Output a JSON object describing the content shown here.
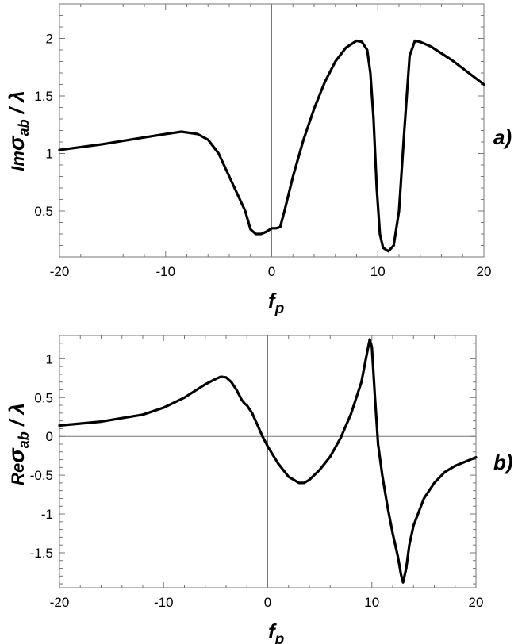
{
  "chart_data": [
    {
      "type": "line",
      "panel_label": "a)",
      "xlabel": {
        "base": "f",
        "sub": "p"
      },
      "ylabel": {
        "prefix": "Im",
        "sigma": "σ",
        "sub": "ab",
        "suffix": " / λ"
      },
      "xlim": [
        -20,
        20
      ],
      "ylim": [
        0.1,
        2.3
      ],
      "xticks": [
        -20,
        -10,
        0,
        10,
        20
      ],
      "yticks": [
        0.5,
        1,
        1.5,
        2
      ],
      "ytick_labels": [
        "0.5",
        "1",
        "1.5",
        "2"
      ],
      "xtick_labels": [
        "-20",
        "-10",
        "0",
        "10",
        "20"
      ],
      "zero_line_x": true,
      "zero_line_y": false,
      "series": [
        {
          "color": "#000000",
          "x": [
            -20,
            -16,
            -12,
            -10,
            -8.5,
            -7,
            -6,
            -5,
            -4,
            -3,
            -2.5,
            -2,
            -1.5,
            -1,
            -0.5,
            0,
            0.4,
            0.8,
            1.2,
            2,
            3,
            4,
            5,
            6,
            7,
            8,
            8.5,
            9,
            9.3,
            9.6,
            9.9,
            10.2,
            10.5,
            11,
            11.5,
            12,
            12.5,
            13,
            13.5,
            14,
            15,
            17,
            20
          ],
          "y": [
            1.03,
            1.08,
            1.14,
            1.17,
            1.19,
            1.17,
            1.12,
            1.0,
            0.8,
            0.6,
            0.5,
            0.34,
            0.3,
            0.3,
            0.32,
            0.35,
            0.35,
            0.36,
            0.5,
            0.8,
            1.12,
            1.39,
            1.62,
            1.8,
            1.92,
            1.98,
            1.97,
            1.9,
            1.7,
            1.3,
            0.7,
            0.3,
            0.18,
            0.15,
            0.2,
            0.5,
            1.2,
            1.85,
            1.98,
            1.97,
            1.93,
            1.81,
            1.6
          ]
        }
      ]
    },
    {
      "type": "line",
      "panel_label": "b)",
      "xlabel": {
        "base": "f",
        "sub": "p"
      },
      "ylabel": {
        "prefix": "Re",
        "sigma": "σ",
        "sub": "ab",
        "suffix": " / λ"
      },
      "xlim": [
        -20,
        20
      ],
      "ylim": [
        -1.95,
        1.3
      ],
      "xticks": [
        -20,
        -10,
        0,
        10,
        20
      ],
      "yticks": [
        1,
        0.5,
        0,
        -0.5,
        -1,
        -1.5
      ],
      "ytick_labels": [
        "1",
        "0.5",
        "0",
        "-0.5",
        "-1",
        "-1.5"
      ],
      "xtick_labels": [
        "-20",
        "-10",
        "0",
        "10",
        "20"
      ],
      "zero_line_x": true,
      "zero_line_y": true,
      "series": [
        {
          "color": "#000000",
          "x": [
            -20,
            -16,
            -12,
            -10,
            -8,
            -6,
            -5,
            -4.5,
            -4,
            -3.5,
            -3,
            -2.5,
            -2.2,
            -2,
            -1.5,
            -1,
            -0.5,
            0,
            1,
            2,
            3,
            3.5,
            4,
            5,
            6,
            7,
            8,
            9,
            9.5,
            9.8,
            10,
            10.3,
            10.6,
            11,
            11.5,
            12,
            12.5,
            12.8,
            13,
            13.3,
            13.6,
            14,
            15,
            16,
            17,
            18,
            20
          ],
          "y": [
            0.14,
            0.19,
            0.28,
            0.37,
            0.5,
            0.67,
            0.74,
            0.77,
            0.76,
            0.7,
            0.6,
            0.47,
            0.42,
            0.4,
            0.3,
            0.15,
            0.0,
            -0.13,
            -0.35,
            -0.52,
            -0.6,
            -0.6,
            -0.56,
            -0.43,
            -0.26,
            -0.02,
            0.29,
            0.7,
            1.05,
            1.25,
            1.15,
            0.5,
            -0.1,
            -0.5,
            -0.9,
            -1.25,
            -1.55,
            -1.78,
            -1.88,
            -1.7,
            -1.4,
            -1.15,
            -0.8,
            -0.6,
            -0.46,
            -0.38,
            -0.27
          ]
        }
      ]
    }
  ]
}
